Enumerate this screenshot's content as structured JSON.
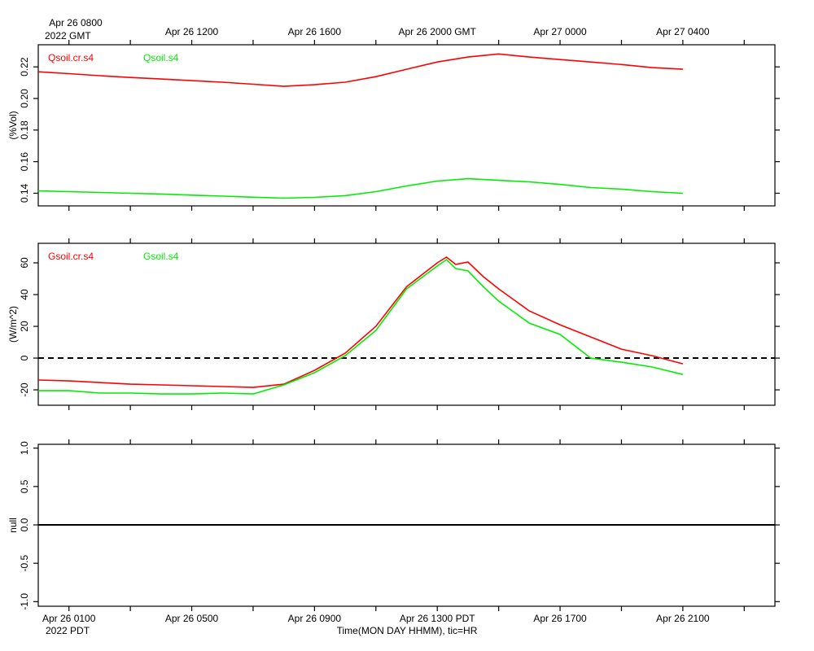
{
  "time_axis": {
    "xlim": [
      0,
      24
    ],
    "xticks": [
      {
        "value": 1,
        "label": "Apr 26 0100"
      },
      {
        "value": 5,
        "label": "Apr 26 0500"
      },
      {
        "value": 9,
        "label": "Apr 26 0900"
      },
      {
        "value": 13,
        "label": "Apr 26 1300 PDT"
      },
      {
        "value": 17,
        "label": "Apr 26 1700"
      },
      {
        "value": 21,
        "label": "Apr 26 2100"
      }
    ],
    "x2ticks": [
      {
        "value": 1,
        "label": "Apr 26 0800"
      },
      {
        "value": 5,
        "label": "Apr 26 1200"
      },
      {
        "value": 9,
        "label": "Apr 26 1600"
      },
      {
        "value": 13,
        "label": "Apr 26 2000 GMT"
      },
      {
        "value": 17,
        "label": "Apr 27 0000"
      },
      {
        "value": 21,
        "label": "Apr 27 0400"
      }
    ],
    "minor_ticks": [
      3,
      7,
      11,
      15,
      19,
      23
    ],
    "top_year_label": "2022 GMT",
    "bottom_year_label": "2022 PDT",
    "xlabel": "Time(MON DAY HHMM), tic=HR"
  },
  "chart_data": [
    {
      "type": "line",
      "ylabel": "(%Vol)",
      "ylim": [
        0.132,
        0.234
      ],
      "yticks": [
        0.14,
        {
          "value": 0.16,
          "label": "0.16"
        },
        {
          "value": 0.18,
          "label": "0.18"
        },
        {
          "value": 0.2,
          "label": "0.20"
        },
        0.22
      ],
      "x": [
        0,
        1,
        2,
        3,
        4,
        5,
        6,
        7,
        8,
        9,
        10,
        11,
        12,
        13,
        14,
        15,
        16,
        17,
        18,
        19,
        20,
        21
      ],
      "series": [
        {
          "name": "Qsoil.cr.s4",
          "color": "#ff0000",
          "values": [
            0.2169,
            0.2157,
            0.2144,
            0.2133,
            0.2123,
            0.2113,
            0.2103,
            0.209,
            0.2077,
            0.2087,
            0.2103,
            0.2138,
            0.2185,
            0.2231,
            0.2262,
            0.2282,
            0.2262,
            0.2246,
            0.2231,
            0.2215,
            0.2195,
            0.2185
          ]
        },
        {
          "name": "Qsoil.s4",
          "color": "#00ee00",
          "values": [
            0.1415,
            0.141,
            0.1405,
            0.14,
            0.1395,
            0.1388,
            0.1382,
            0.1375,
            0.1369,
            0.1374,
            0.1385,
            0.141,
            0.1446,
            0.1477,
            0.1492,
            0.1482,
            0.1472,
            0.1456,
            0.1436,
            0.1426,
            0.141,
            0.14
          ]
        }
      ]
    },
    {
      "type": "line",
      "ylabel": "(W/m^2)",
      "ylim": [
        -29.7,
        72.3
      ],
      "yticks": [
        -20,
        0,
        20,
        40,
        60
      ],
      "zero_line": "dashed",
      "x": [
        0,
        1,
        2,
        3,
        4,
        5,
        6,
        7,
        8,
        9,
        10,
        11,
        12,
        13,
        13.3,
        13.6,
        14,
        14.5,
        15,
        16,
        17,
        18,
        19,
        20,
        21
      ],
      "series": [
        {
          "name": "Gsoil.cr.s4",
          "color": "#ff0000",
          "values": [
            -13.8,
            -14.4,
            -15.4,
            -16.4,
            -16.9,
            -17.4,
            -17.9,
            -18.5,
            -16.4,
            -7.7,
            3.1,
            20,
            45,
            60,
            63.6,
            59,
            60.5,
            51.3,
            43.6,
            29.7,
            21,
            13.3,
            5.6,
            1.5,
            -3.6
          ]
        },
        {
          "name": "Gsoil.s4",
          "color": "#00ee00",
          "values": [
            -20.5,
            -20.5,
            -22,
            -22,
            -22.6,
            -22.6,
            -22,
            -22.6,
            -16.9,
            -9.2,
            1.5,
            17.4,
            43.6,
            58,
            62,
            56.4,
            54.9,
            45,
            35.9,
            22,
            14.9,
            0,
            -2.6,
            -5.6,
            -10.3
          ]
        }
      ]
    },
    {
      "type": "line",
      "ylabel": "null",
      "ylim": [
        -1.06,
        1.05
      ],
      "zero_line": "solid",
      "yticks": [
        {
          "value": -1,
          "label": "-1.0"
        },
        -0.5,
        {
          "value": 0,
          "label": "0.0"
        },
        0.5,
        {
          "value": 1,
          "label": "1.0"
        }
      ],
      "x": [],
      "series": []
    }
  ]
}
